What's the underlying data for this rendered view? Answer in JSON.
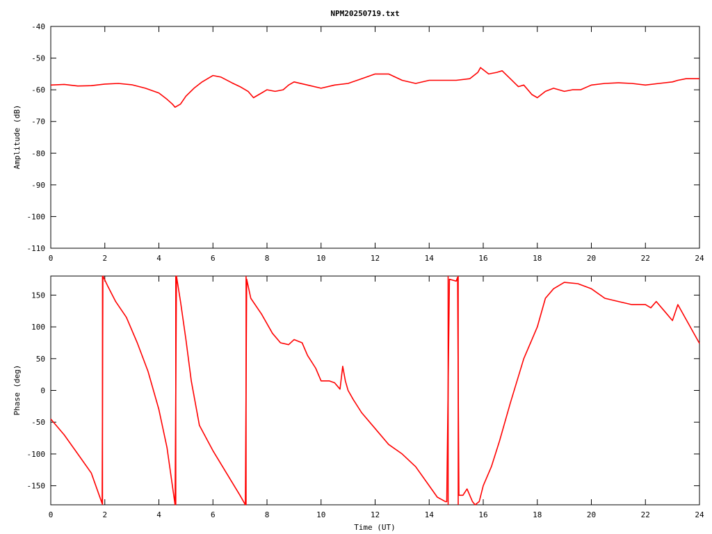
{
  "figure": {
    "title": "NPM20250719.txt"
  },
  "chart_data": [
    {
      "type": "line",
      "title": "NPM20250719.txt",
      "xlabel": "",
      "ylabel": "Amplitude (dB)",
      "xlim": [
        0,
        24
      ],
      "ylim": [
        -110,
        -40
      ],
      "xticks": [
        0,
        2,
        4,
        6,
        8,
        10,
        12,
        14,
        16,
        18,
        20,
        22,
        24
      ],
      "yticks": [
        -40,
        -50,
        -60,
        -70,
        -80,
        -90,
        -100,
        -110
      ],
      "grid": false,
      "line_color": "#ff0000",
      "series": [
        {
          "x": [
            0,
            0.5,
            1.0,
            1.5,
            2.0,
            2.5,
            3.0,
            3.5,
            4.0,
            4.3,
            4.5,
            4.6,
            4.8,
            5.0,
            5.3,
            5.6,
            6.0,
            6.3,
            6.7,
            7.0,
            7.3,
            7.5,
            7.7,
            8.0,
            8.3,
            8.6,
            8.8,
            9.0,
            9.5,
            10.0,
            10.5,
            11.0,
            11.5,
            12.0,
            12.5,
            13.0,
            13.5,
            14.0,
            14.5,
            15.0,
            15.5,
            15.8,
            15.9,
            16.2,
            16.5,
            16.7,
            17.0,
            17.3,
            17.5,
            17.8,
            18.0,
            18.3,
            18.6,
            19.0,
            19.3,
            19.6,
            20.0,
            20.5,
            21.0,
            21.5,
            22.0,
            22.5,
            23.0,
            23.2,
            23.5,
            24.0
          ],
          "y": [
            -58.5,
            -58.3,
            -58.8,
            -58.7,
            -58.2,
            -58.0,
            -58.4,
            -59.5,
            -61.0,
            -63.0,
            -64.5,
            -65.5,
            -64.5,
            -62.0,
            -59.5,
            -57.5,
            -55.5,
            -56.0,
            -57.8,
            -59.0,
            -60.5,
            -62.5,
            -61.5,
            -60.0,
            -60.5,
            -60.0,
            -58.5,
            -57.5,
            -58.5,
            -59.5,
            -58.5,
            -58.0,
            -56.5,
            -55.0,
            -55.0,
            -57.0,
            -58.0,
            -57.0,
            -57.0,
            -57.0,
            -56.5,
            -54.5,
            -53.0,
            -55.0,
            -54.5,
            -54.0,
            -56.5,
            -59.0,
            -58.5,
            -61.5,
            -62.5,
            -60.5,
            -59.5,
            -60.5,
            -60.0,
            -60.0,
            -58.5,
            -58.0,
            -57.8,
            -58.0,
            -58.5,
            -58.0,
            -57.5,
            -57.0,
            -56.5,
            -56.5
          ]
        }
      ]
    },
    {
      "type": "line",
      "title": "",
      "xlabel": "Time (UT)",
      "ylabel": "Phase (deg)",
      "xlim": [
        0,
        24
      ],
      "ylim": [
        -180,
        180
      ],
      "xticks": [
        0,
        2,
        4,
        6,
        8,
        10,
        12,
        14,
        16,
        18,
        20,
        22,
        24
      ],
      "yticks": [
        150,
        100,
        50,
        0,
        -50,
        -100,
        -150
      ],
      "grid": false,
      "line_color": "#ff0000",
      "series": [
        {
          "x": [
            0,
            0.5,
            1.0,
            1.5,
            1.9,
            1.93,
            2.1,
            2.4,
            2.8,
            3.2,
            3.6,
            4.0,
            4.3,
            4.6,
            4.65,
            4.8,
            5.0,
            5.2,
            5.5,
            6.0,
            6.5,
            7.0,
            7.2,
            7.25,
            7.4,
            7.8,
            8.2,
            8.5,
            8.8,
            9.0,
            9.3,
            9.5,
            9.8,
            10.0,
            10.3,
            10.5,
            10.7,
            10.8,
            10.9,
            11.0,
            11.2,
            11.5,
            12.0,
            12.5,
            13.0,
            13.5,
            14.0,
            14.3,
            14.6,
            14.65,
            14.75,
            15.0,
            15.05,
            15.1,
            15.25,
            15.4,
            15.6,
            15.7,
            15.85,
            16.0,
            16.3,
            16.6,
            17.0,
            17.5,
            17.8,
            18.0,
            18.3,
            18.6,
            19.0,
            19.5,
            20.0,
            20.5,
            21.0,
            21.5,
            22.0,
            22.2,
            22.4,
            22.7,
            23.0,
            23.2,
            23.5,
            24.0
          ],
          "y": [
            -45,
            -70,
            -100,
            -130,
            -178,
            180,
            165,
            140,
            115,
            75,
            30,
            -30,
            -90,
            -180,
            180,
            140,
            80,
            15,
            -55,
            -95,
            -130,
            -165,
            -180,
            175,
            145,
            120,
            90,
            75,
            72,
            80,
            75,
            55,
            35,
            15,
            15,
            12,
            2,
            38,
            15,
            0,
            -15,
            -35,
            -60,
            -85,
            -100,
            -120,
            -150,
            -168,
            -175,
            -175,
            175,
            172,
            178,
            -165,
            -165,
            -155,
            -175,
            -180,
            -175,
            -150,
            -120,
            -80,
            -20,
            50,
            80,
            100,
            145,
            160,
            170,
            168,
            160,
            145,
            140,
            135,
            135,
            130,
            140,
            125,
            110,
            135,
            112,
            74
          ]
        }
      ]
    }
  ]
}
